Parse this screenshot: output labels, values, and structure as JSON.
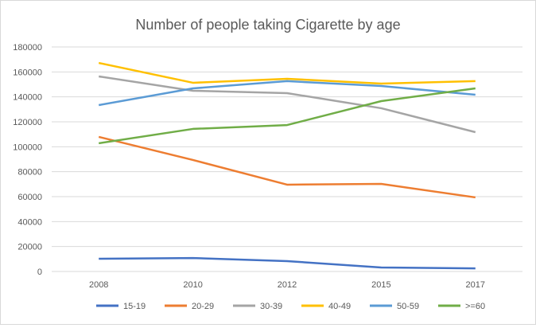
{
  "chart_data": {
    "type": "line",
    "title": "Number of people taking Cigarette by age",
    "xlabel": "",
    "ylabel": "",
    "categories": [
      "2008",
      "2010",
      "2012",
      "2015",
      "2017"
    ],
    "ylim": [
      0,
      180000
    ],
    "yticks": [
      "0",
      "20000",
      "40000",
      "60000",
      "80000",
      "100000",
      "120000",
      "140000",
      "160000",
      "180000"
    ],
    "grid": true,
    "legend_position": "bottom",
    "series": [
      {
        "name": "15-19",
        "color": "#4472c4",
        "values": [
          10200,
          10800,
          8300,
          3200,
          2500
        ]
      },
      {
        "name": "20-29",
        "color": "#ed7d31",
        "values": [
          107900,
          89400,
          69600,
          70200,
          59400
        ]
      },
      {
        "name": "30-39",
        "color": "#a5a5a5",
        "values": [
          156400,
          144900,
          143000,
          130900,
          111700
        ]
      },
      {
        "name": "40-49",
        "color": "#ffc000",
        "values": [
          167200,
          151300,
          154500,
          150600,
          152600
        ]
      },
      {
        "name": "50-59",
        "color": "#5b9bd5",
        "values": [
          133400,
          146800,
          152600,
          148700,
          141700
        ]
      },
      {
        "name": ">=60",
        "color": "#70ad47",
        "values": [
          102800,
          114300,
          117400,
          136600,
          146800
        ]
      }
    ]
  }
}
